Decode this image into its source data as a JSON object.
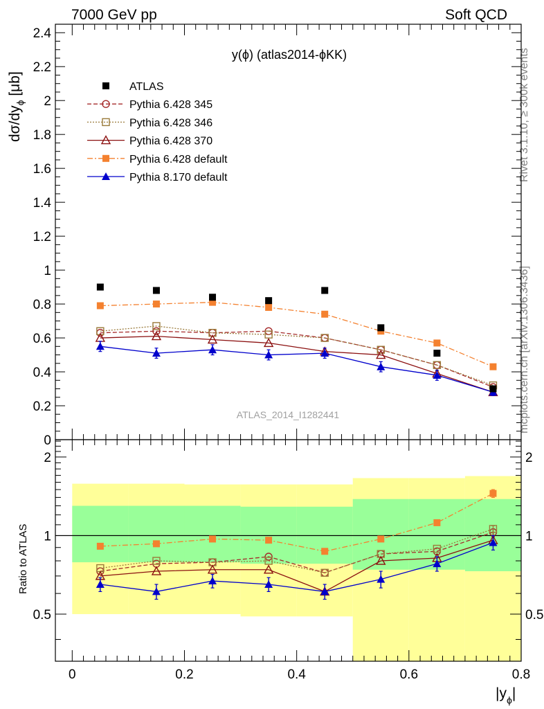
{
  "header": {
    "left": "7000 GeV pp",
    "right": "Soft QCD"
  },
  "side_labels": {
    "rivet": "Rivet 3.1.10, ≥ 300k events",
    "mcplots": "mcplots.cern.ch [arXiv:1306.3436]"
  },
  "chart_data": {
    "type": "scatter",
    "title": "y(ϕ) (atlas2014-ϕKK)",
    "analysis_label": "ATLAS_2014_I1282441",
    "ylabel": "dσ/dyϕ [μb]",
    "ylabel_parts": {
      "main": "dσ/dy",
      "sub": "ϕ",
      "unit": " [μb]"
    },
    "xlabel_parts": {
      "main": "|y",
      "sub": "ϕ",
      "end": "|"
    },
    "ratio_ylabel": "Ratio to ATLAS",
    "xlim": [
      -0.03,
      0.8
    ],
    "ylim": [
      0,
      2.45
    ],
    "ratio_ylim": [
      0.33,
      2.33
    ],
    "ratio_scale": "log",
    "x_ticks": [
      "0",
      "0.2",
      "0.4",
      "0.6",
      "0.8"
    ],
    "y_ticks": [
      "0",
      "0.2",
      "0.4",
      "0.6",
      "0.8",
      "1",
      "1.2",
      "1.4",
      "1.6",
      "1.8",
      "2",
      "2.2",
      "2.4"
    ],
    "ratio_ticks": [
      "0.5",
      "1",
      "2"
    ],
    "x": [
      0.05,
      0.15,
      0.25,
      0.35,
      0.45,
      0.55,
      0.65,
      0.75
    ],
    "bin_edges": [
      0.0,
      0.1,
      0.2,
      0.3,
      0.4,
      0.5,
      0.6,
      0.7,
      0.8
    ],
    "band_outer": {
      "lo": [
        0.5,
        0.5,
        0.5,
        0.49,
        0.49,
        0.33,
        0.33,
        0.33
      ],
      "hi": [
        1.58,
        1.58,
        1.57,
        1.57,
        1.57,
        1.66,
        1.66,
        1.69
      ]
    },
    "band_inner": {
      "lo": [
        0.79,
        0.79,
        0.79,
        0.78,
        0.78,
        0.74,
        0.74,
        0.73
      ],
      "hi": [
        1.3,
        1.3,
        1.3,
        1.29,
        1.29,
        1.38,
        1.38,
        1.38
      ]
    },
    "data": {
      "name": "ATLAS",
      "values": [
        0.9,
        0.88,
        0.84,
        0.82,
        0.88,
        0.66,
        0.51,
        0.3
      ],
      "color": "#000000"
    },
    "series": [
      {
        "name": "Pythia 6.428 345",
        "color": "#a52a2a",
        "marker": "circle-open",
        "dash": "6,3",
        "values": [
          0.63,
          0.64,
          0.63,
          0.64,
          0.6,
          0.53,
          0.44,
          0.31
        ],
        "ratio": [
          0.73,
          0.78,
          0.79,
          0.83,
          0.72,
          0.85,
          0.87,
          1.03
        ],
        "ratio_err": [
          0.0,
          0.0,
          0.0,
          0.0,
          0.0,
          0.0,
          0.0,
          0.03
        ]
      },
      {
        "name": "Pythia 6.428 346",
        "color": "#9a7a3a",
        "marker": "square-open",
        "dash": "2,2",
        "values": [
          0.64,
          0.67,
          0.63,
          0.62,
          0.6,
          0.53,
          0.44,
          0.32
        ],
        "ratio": [
          0.75,
          0.8,
          0.79,
          0.8,
          0.72,
          0.85,
          0.89,
          1.06
        ],
        "ratio_err": [
          0.0,
          0.0,
          0.0,
          0.0,
          0.0,
          0.0,
          0.0,
          0.03
        ]
      },
      {
        "name": "Pythia 6.428 370",
        "color": "#8b1010",
        "marker": "triangle-open",
        "dash": "",
        "values": [
          0.6,
          0.61,
          0.59,
          0.57,
          0.52,
          0.5,
          0.39,
          0.28
        ],
        "ratio": [
          0.7,
          0.73,
          0.74,
          0.74,
          0.61,
          0.8,
          0.82,
          0.96
        ],
        "ratio_err": [
          0.0,
          0.0,
          0.0,
          0.0,
          0.0,
          0.0,
          0.0,
          0.03
        ]
      },
      {
        "name": "Pythia 6.428 default",
        "color": "#f4812f",
        "marker": "square-filled",
        "dash": "8,3,2,3",
        "values": [
          0.79,
          0.8,
          0.81,
          0.78,
          0.74,
          0.64,
          0.57,
          0.43
        ],
        "ratio": [
          0.91,
          0.93,
          0.97,
          0.96,
          0.87,
          0.97,
          1.12,
          1.45
        ],
        "ratio_err": [
          0.02,
          0.0,
          0.02,
          0.02,
          0.02,
          0.02,
          0.02,
          0.05
        ]
      },
      {
        "name": "Pythia 8.170 default",
        "color": "#0000cc",
        "marker": "triangle-filled",
        "dash": "",
        "values": [
          0.55,
          0.51,
          0.53,
          0.5,
          0.51,
          0.43,
          0.38,
          0.28
        ],
        "err": [
          0.03,
          0.03,
          0.03,
          0.03,
          0.03,
          0.03,
          0.03,
          0.02
        ],
        "ratio": [
          0.65,
          0.61,
          0.67,
          0.65,
          0.61,
          0.68,
          0.78,
          0.94
        ],
        "ratio_err": [
          0.04,
          0.04,
          0.04,
          0.04,
          0.04,
          0.05,
          0.05,
          0.06
        ]
      }
    ],
    "legend_placement": "top-left",
    "grid": false,
    "colors": {
      "band_outer": "#ffff99",
      "band_inner": "#99ff99",
      "reference_line": "#000000"
    }
  }
}
